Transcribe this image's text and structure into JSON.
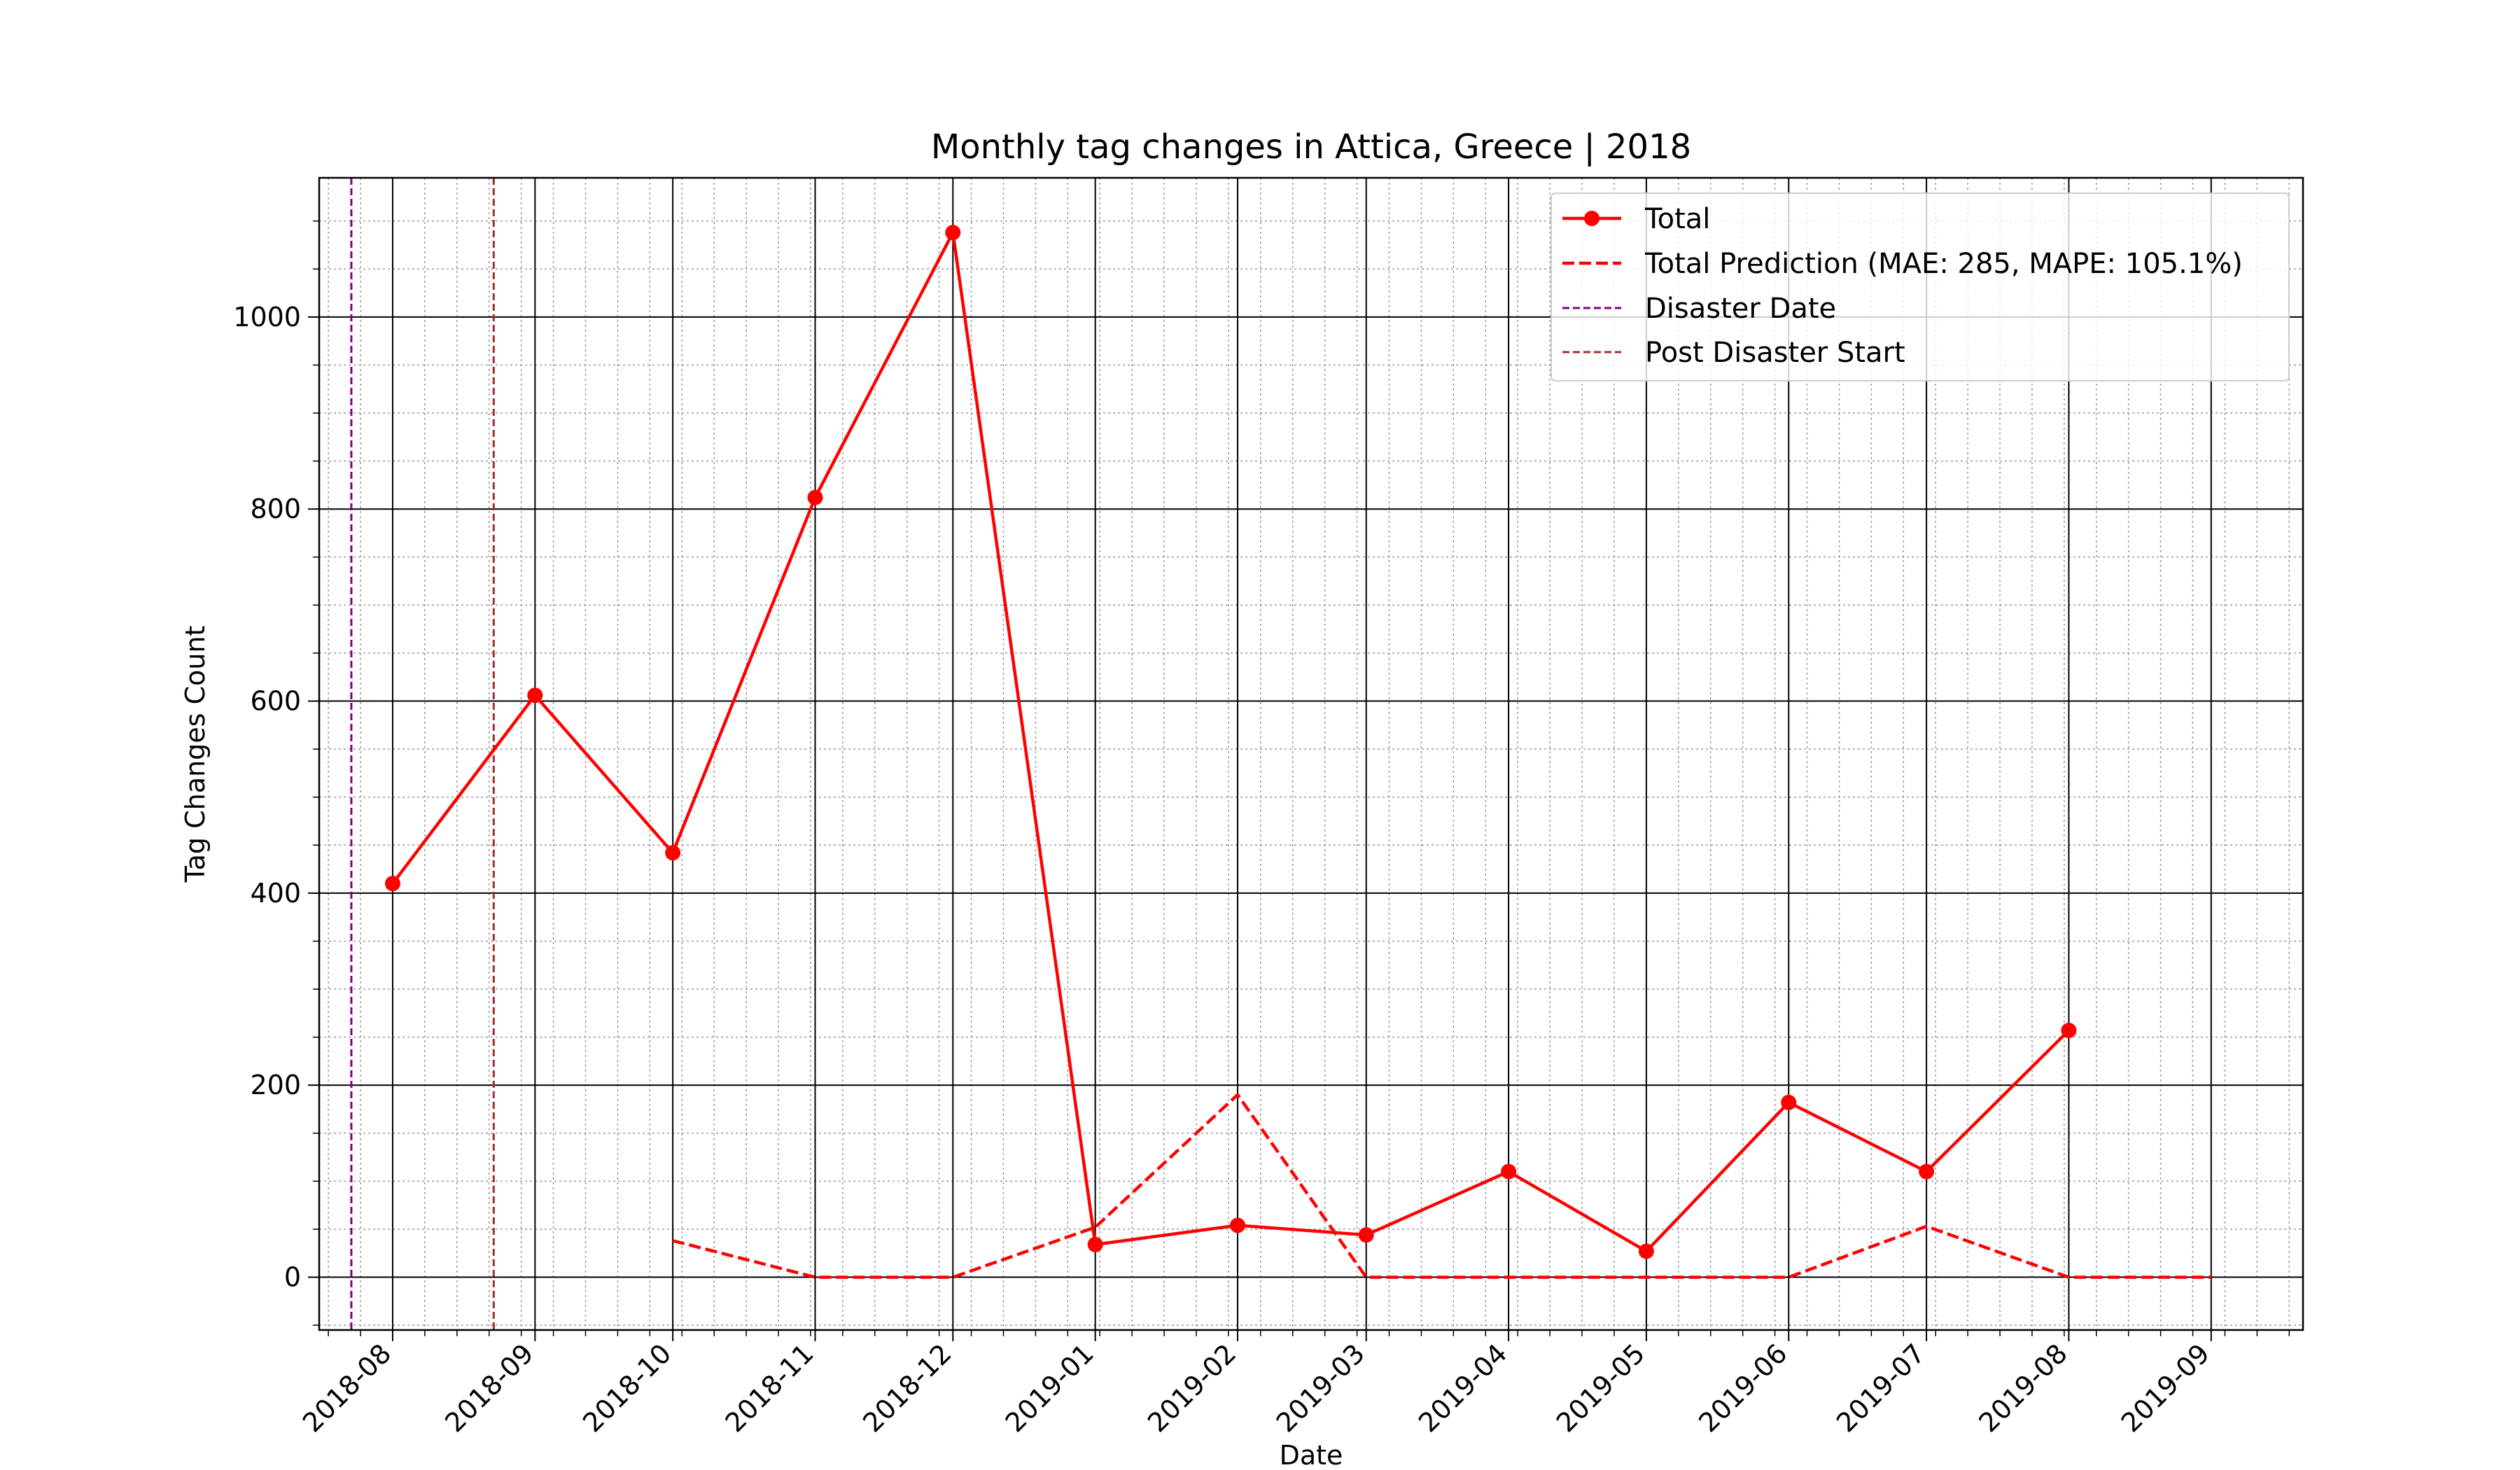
{
  "chart_data": {
    "type": "line",
    "title": "Monthly tag changes in Attica, Greece | 2018",
    "xlabel": "Date",
    "ylabel": "Tag Changes Count",
    "x_ticks": [
      "2018-08",
      "2018-09",
      "2018-10",
      "2018-11",
      "2018-12",
      "2019-01",
      "2019-02",
      "2019-03",
      "2019-04",
      "2019-05",
      "2019-06",
      "2019-07",
      "2019-08",
      "2019-09"
    ],
    "xlim": [
      "2018-07-16",
      "2019-09-21"
    ],
    "y_ticks": [
      0,
      200,
      400,
      600,
      800,
      1000
    ],
    "ylim": [
      -55,
      1145
    ],
    "grid": "major solid black, minor dotted gray",
    "legend_position": "upper right",
    "series": [
      {
        "name": "Total",
        "style": "solid line with circle markers",
        "color": "#ff0000",
        "x": [
          "2018-08-01",
          "2018-09-01",
          "2018-10-01",
          "2018-11-01",
          "2018-12-01",
          "2019-01-01",
          "2019-02-01",
          "2019-03-01",
          "2019-04-01",
          "2019-05-01",
          "2019-06-01",
          "2019-07-01",
          "2019-08-01"
        ],
        "values": [
          410,
          606,
          442,
          812,
          1088,
          34,
          54,
          44,
          110,
          27,
          182,
          110,
          257
        ]
      },
      {
        "name": "Total Prediction (MAE: 285, MAPE: 105.1%)",
        "style": "dashed line",
        "color": "#ff0000",
        "x": [
          "2018-10-01",
          "2018-11-01",
          "2018-12-01",
          "2019-01-01",
          "2019-02-01",
          "2019-03-01",
          "2019-04-01",
          "2019-05-01",
          "2019-06-01",
          "2019-07-01",
          "2019-08-01",
          "2019-09-01"
        ],
        "values": [
          38,
          0,
          0,
          52,
          190,
          0,
          0,
          0,
          0,
          53,
          0,
          0
        ]
      }
    ],
    "vertical_lines": [
      {
        "name": "Disaster Date",
        "date": "2018-07-23",
        "color": "#800080",
        "style": "dashed"
      },
      {
        "name": "Post Disaster Start",
        "date": "2018-08-23",
        "color": "#a52a2a",
        "style": "dashed"
      }
    ]
  }
}
